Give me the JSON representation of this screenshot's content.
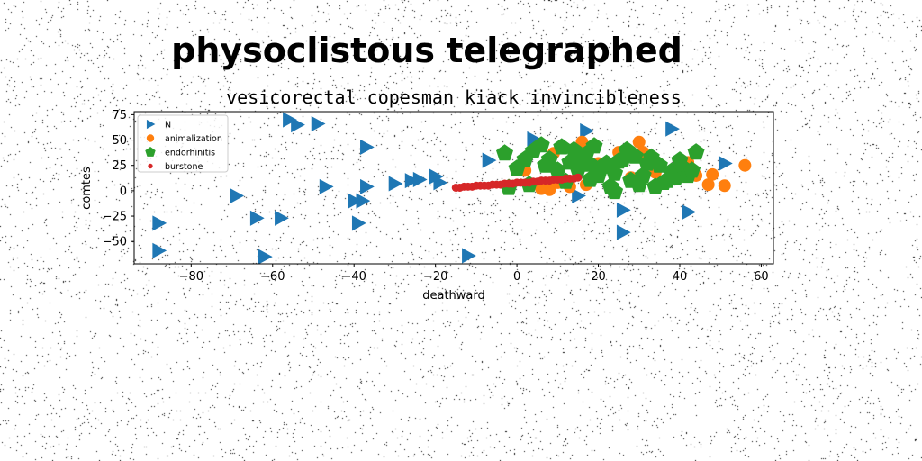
{
  "chart_data": {
    "type": "scatter",
    "suptitle": "physoclistous telegraphed",
    "title": "vesicorectal copesman kiack invincibleness",
    "xlabel": "deathward",
    "ylabel": "comtes",
    "xlim": [
      -94,
      63
    ],
    "ylim": [
      -72,
      78
    ],
    "xticks": [
      -80,
      -60,
      -40,
      -20,
      0,
      20,
      40,
      60
    ],
    "yticks": [
      -50,
      -25,
      0,
      25,
      50,
      75
    ],
    "legend_position": "upper-left",
    "grid": false,
    "series": [
      {
        "name": "N",
        "marker": "triangle-right",
        "color": "#1f77b4",
        "points": [
          [
            -56,
            70
          ],
          [
            -54,
            65
          ],
          [
            -49,
            66
          ],
          [
            -37,
            43
          ],
          [
            -47,
            4
          ],
          [
            -37,
            4
          ],
          [
            -30,
            7
          ],
          [
            -26,
            10
          ],
          [
            -24,
            11
          ],
          [
            -20,
            14
          ],
          [
            -19,
            8
          ],
          [
            -7,
            30
          ],
          [
            4,
            51
          ],
          [
            17,
            59
          ],
          [
            38,
            61
          ],
          [
            51,
            27
          ],
          [
            -38,
            -10
          ],
          [
            -40,
            -10
          ],
          [
            -69,
            -5
          ],
          [
            -64,
            -27
          ],
          [
            -58,
            -27
          ],
          [
            -39,
            -32
          ],
          [
            -88,
            -32
          ],
          [
            -88,
            -59
          ],
          [
            -62,
            -65
          ],
          [
            -12,
            -64
          ],
          [
            26,
            -19
          ],
          [
            42,
            -21
          ],
          [
            26,
            -41
          ],
          [
            15,
            -5
          ]
        ]
      },
      {
        "name": "animalization",
        "marker": "circle",
        "color": "#ff7f0e",
        "points": [
          [
            16,
            48
          ],
          [
            30,
            48
          ],
          [
            9,
            37
          ],
          [
            56,
            25
          ],
          [
            48,
            16
          ],
          [
            51,
            5
          ],
          [
            47,
            6
          ],
          [
            44,
            15
          ],
          [
            34,
            18
          ],
          [
            28,
            13
          ],
          [
            25,
            38
          ],
          [
            17,
            6
          ],
          [
            13,
            4
          ],
          [
            8,
            1
          ],
          [
            6,
            2
          ],
          [
            20,
            27
          ],
          [
            38,
            20
          ],
          [
            42,
            28
          ],
          [
            31,
            38
          ],
          [
            2,
            20
          ],
          [
            10,
            8
          ]
        ]
      },
      {
        "name": "endorhinitis",
        "marker": "pentagon",
        "color": "#2ca02c",
        "points": [
          [
            -3,
            37
          ],
          [
            0,
            22
          ],
          [
            2,
            31
          ],
          [
            4,
            39
          ],
          [
            6,
            45
          ],
          [
            8,
            31
          ],
          [
            10,
            20
          ],
          [
            11,
            43
          ],
          [
            13,
            28
          ],
          [
            14,
            40
          ],
          [
            15,
            21
          ],
          [
            16,
            30
          ],
          [
            17,
            36
          ],
          [
            18,
            26
          ],
          [
            19,
            44
          ],
          [
            20,
            15
          ],
          [
            22,
            27
          ],
          [
            23,
            4
          ],
          [
            24,
            17
          ],
          [
            25,
            29
          ],
          [
            26,
            31
          ],
          [
            27,
            40
          ],
          [
            28,
            10
          ],
          [
            29,
            34
          ],
          [
            30,
            6
          ],
          [
            31,
            15
          ],
          [
            32,
            27
          ],
          [
            33,
            33
          ],
          [
            35,
            25
          ],
          [
            36,
            8
          ],
          [
            37,
            10
          ],
          [
            38,
            19
          ],
          [
            39,
            13
          ],
          [
            40,
            30
          ],
          [
            41,
            22
          ],
          [
            42,
            15
          ],
          [
            43,
            20
          ],
          [
            44,
            38
          ],
          [
            -2,
            3
          ],
          [
            3,
            6
          ],
          [
            7,
            25
          ],
          [
            12,
            9
          ],
          [
            21,
            24
          ],
          [
            24,
            -1
          ],
          [
            34,
            4
          ],
          [
            18,
            11
          ]
        ]
      },
      {
        "name": "burstone",
        "marker": "dot",
        "color": "#d62728",
        "points": [
          [
            -15,
            3
          ],
          [
            -13,
            4
          ],
          [
            -11,
            4
          ],
          [
            -9,
            5
          ],
          [
            -7,
            5
          ],
          [
            -5,
            6
          ],
          [
            -3,
            7
          ],
          [
            -1,
            7
          ],
          [
            1,
            8
          ],
          [
            3,
            8
          ],
          [
            5,
            9
          ],
          [
            7,
            10
          ],
          [
            9,
            11
          ],
          [
            11,
            11
          ],
          [
            13,
            12
          ],
          [
            15,
            13
          ],
          [
            -14,
            3
          ],
          [
            -12,
            4
          ],
          [
            -10,
            5
          ],
          [
            -8,
            5
          ],
          [
            -6,
            6
          ],
          [
            -4,
            6
          ],
          [
            -2,
            7
          ],
          [
            0,
            8
          ],
          [
            2,
            8
          ],
          [
            4,
            9
          ],
          [
            6,
            10
          ],
          [
            8,
            10
          ],
          [
            10,
            11
          ],
          [
            12,
            12
          ],
          [
            14,
            12
          ]
        ]
      }
    ]
  }
}
